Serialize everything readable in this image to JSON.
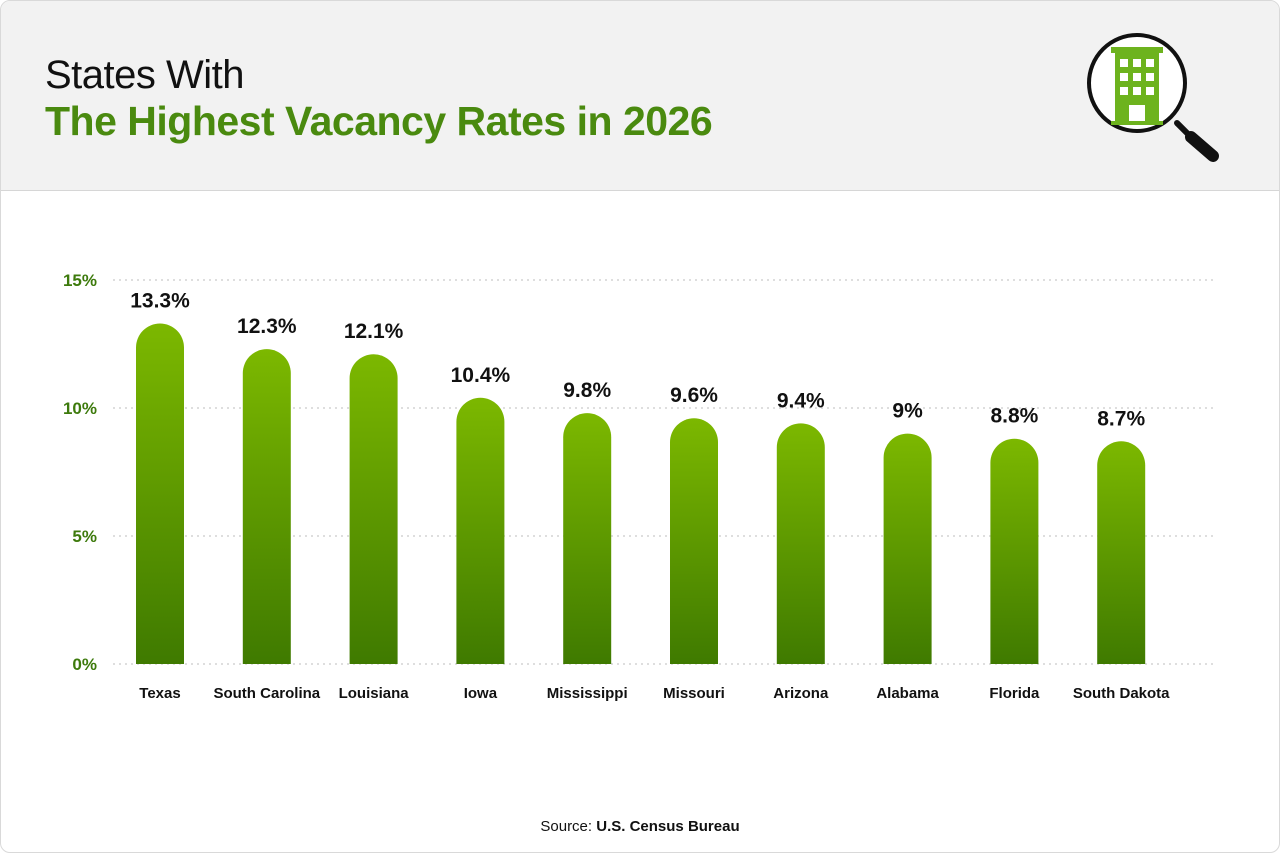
{
  "header": {
    "title_line1": "States With",
    "title_line2": "The Highest Vacancy Rates in 2026",
    "icon": "building-magnifier-icon"
  },
  "source": {
    "label": "Source:",
    "value": "U.S. Census Bureau"
  },
  "colors": {
    "accent": "#4a8a0f",
    "bar_top": "#7cb800",
    "bar_bottom": "#3f7a00",
    "tick": "#3d7a0c"
  },
  "chart_data": {
    "type": "bar",
    "categories": [
      "Texas",
      "South Carolina",
      "Louisiana",
      "Iowa",
      "Mississippi",
      "Missouri",
      "Arizona",
      "Alabama",
      "Florida",
      "South Dakota"
    ],
    "values": [
      13.3,
      12.3,
      12.1,
      10.4,
      9.8,
      9.6,
      9.4,
      9,
      8.8,
      8.7
    ],
    "value_labels": [
      "13.3%",
      "12.3%",
      "12.1%",
      "10.4%",
      "9.8%",
      "9.6%",
      "9.4%",
      "9%",
      "8.8%",
      "8.7%"
    ],
    "y_ticks": [
      0,
      5,
      10,
      15
    ],
    "y_tick_labels": [
      "0%",
      "5%",
      "10%",
      "15%"
    ],
    "ylim": [
      0,
      15
    ],
    "grid": true,
    "legend": "none"
  }
}
